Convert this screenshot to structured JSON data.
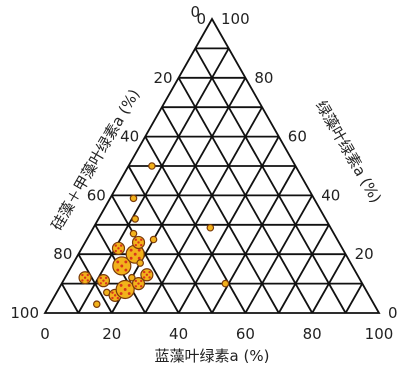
{
  "chart_data": {
    "type": "scatter",
    "subtype": "ternary",
    "axes": {
      "bottom": {
        "label": "蓝藻叶绿素a (%)",
        "ticks": [
          "0",
          "20",
          "40",
          "60",
          "80",
          "100"
        ]
      },
      "left": {
        "label": "硅藻＋甲藻叶绿素a (%)",
        "ticks": [
          "100",
          "80",
          "60",
          "40",
          "20",
          "0"
        ]
      },
      "right": {
        "label": "绿藻叶绿素a (%)",
        "ticks": [
          "100",
          "80",
          "60",
          "40",
          "20",
          "0"
        ]
      }
    },
    "grid": true,
    "grid_step": 10,
    "marker": {
      "fill": "#f2b21b",
      "stroke": "#7a3a0a",
      "dot": "#d8361c"
    },
    "points": [
      {
        "cyano": 6,
        "diatom": 82,
        "green": 12,
        "size": "medium"
      },
      {
        "cyano": 14,
        "diatom": 83,
        "green": 3,
        "size": "small"
      },
      {
        "cyano": 15,
        "diatom": 78,
        "green": 7,
        "size": "small"
      },
      {
        "cyano": 12,
        "diatom": 77,
        "green": 11,
        "size": "medium"
      },
      {
        "cyano": 18,
        "diatom": 76,
        "green": 6,
        "size": "medium"
      },
      {
        "cyano": 20,
        "diatom": 72,
        "green": 8,
        "size": "large"
      },
      {
        "cyano": 15,
        "diatom": 69,
        "green": 16,
        "size": "large"
      },
      {
        "cyano": 11,
        "diatom": 67,
        "green": 22,
        "size": "medium"
      },
      {
        "cyano": 23,
        "diatom": 67,
        "green": 10,
        "size": "medium"
      },
      {
        "cyano": 20,
        "diatom": 68,
        "green": 12,
        "size": "small"
      },
      {
        "cyano": 24,
        "diatom": 63,
        "green": 13,
        "size": "medium"
      },
      {
        "cyano": 16,
        "diatom": 64,
        "green": 20,
        "size": "small"
      },
      {
        "cyano": 17,
        "diatom": 63,
        "green": 20,
        "size": "large"
      },
      {
        "cyano": 20,
        "diatom": 63,
        "green": 17,
        "size": "small"
      },
      {
        "cyano": 16,
        "diatom": 60,
        "green": 24,
        "size": "medium"
      },
      {
        "cyano": 13,
        "diatom": 60,
        "green": 27,
        "size": "small"
      },
      {
        "cyano": 11,
        "diatom": 57,
        "green": 32,
        "size": "small"
      },
      {
        "cyano": 20,
        "diatom": 55,
        "green": 25,
        "size": "small"
      },
      {
        "cyano": 7,
        "diatom": 54,
        "green": 39,
        "size": "small"
      },
      {
        "cyano": 7,
        "diatom": 43,
        "green": 50,
        "size": "small"
      },
      {
        "cyano": 35,
        "diatom": 36,
        "green": 29,
        "size": "small"
      },
      {
        "cyano": 49,
        "diatom": 41,
        "green": 10,
        "size": "small"
      }
    ]
  }
}
